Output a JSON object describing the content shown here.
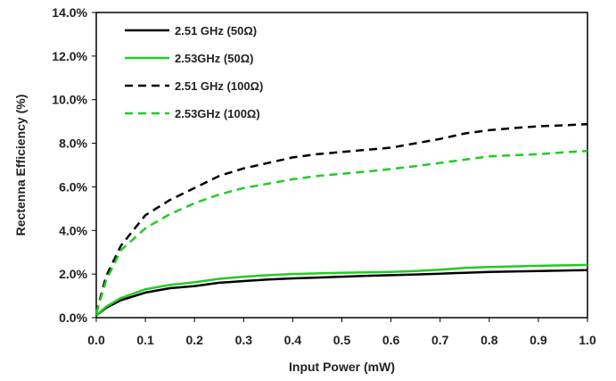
{
  "chart_data": {
    "type": "line",
    "xlabel": "Input Power (mW)",
    "ylabel": "Rectenna Efficiency  (%)",
    "xlim": [
      0,
      1.0
    ],
    "ylim": [
      0,
      14
    ],
    "x_ticks": [
      "0.0",
      "0.1",
      "0.2",
      "0.3",
      "0.4",
      "0.5",
      "0.6",
      "0.7",
      "0.8",
      "0.9",
      "1.0"
    ],
    "y_ticks": [
      "0.0%",
      "2.0%",
      "4.0%",
      "6.0%",
      "8.0%",
      "10.0%",
      "12.0%",
      "14.0%"
    ],
    "grid": false,
    "legend_position": "top-left",
    "x": [
      0.0,
      0.02,
      0.05,
      0.1,
      0.15,
      0.2,
      0.25,
      0.3,
      0.35,
      0.4,
      0.45,
      0.5,
      0.55,
      0.6,
      0.65,
      0.7,
      0.75,
      0.8,
      0.85,
      0.9,
      0.95,
      1.0
    ],
    "series": [
      {
        "name": "2.51 GHz (50Ω)",
        "color": "#000000",
        "dash": "solid",
        "values": [
          0.1,
          0.45,
          0.8,
          1.15,
          1.35,
          1.45,
          1.6,
          1.68,
          1.75,
          1.8,
          1.84,
          1.88,
          1.92,
          1.95,
          1.98,
          2.02,
          2.06,
          2.1,
          2.12,
          2.14,
          2.16,
          2.18
        ]
      },
      {
        "name": "2.53GHz (50Ω)",
        "color": "#22cc22",
        "dash": "solid",
        "values": [
          0.1,
          0.5,
          0.9,
          1.3,
          1.5,
          1.62,
          1.78,
          1.88,
          1.95,
          2.0,
          2.03,
          2.06,
          2.08,
          2.1,
          2.14,
          2.2,
          2.28,
          2.32,
          2.35,
          2.38,
          2.4,
          2.42
        ]
      },
      {
        "name": "2.51 GHz (100Ω)",
        "color": "#000000",
        "dash": "dashed",
        "values": [
          0.2,
          1.9,
          3.3,
          4.7,
          5.4,
          5.95,
          6.5,
          6.85,
          7.1,
          7.35,
          7.5,
          7.6,
          7.7,
          7.8,
          8.0,
          8.2,
          8.45,
          8.6,
          8.7,
          8.78,
          8.82,
          8.88
        ]
      },
      {
        "name": "2.53GHz (100Ω)",
        "color": "#22cc22",
        "dash": "dashed",
        "values": [
          0.2,
          1.7,
          3.1,
          4.1,
          4.75,
          5.25,
          5.65,
          5.95,
          6.15,
          6.35,
          6.5,
          6.6,
          6.7,
          6.82,
          6.95,
          7.1,
          7.25,
          7.4,
          7.45,
          7.5,
          7.58,
          7.65
        ]
      }
    ]
  }
}
